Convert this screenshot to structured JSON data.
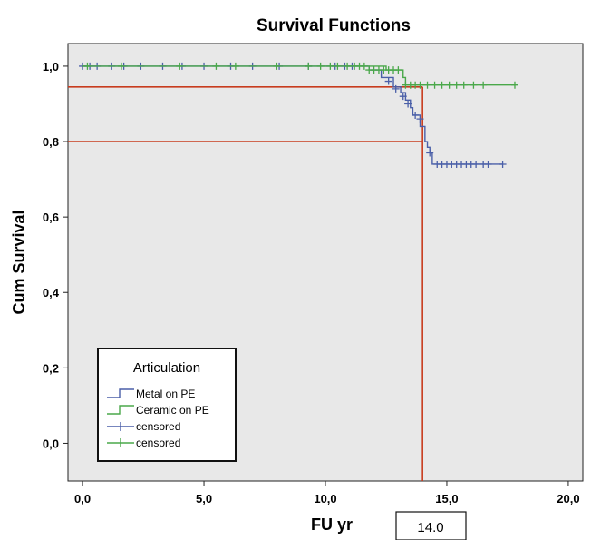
{
  "chart_data": {
    "type": "line",
    "title": "Survival Functions",
    "xlabel": "FU yr",
    "ylabel": "Cum Survival",
    "xlim": [
      -0.6,
      20.6
    ],
    "ylim": [
      -0.1,
      1.06
    ],
    "x_ticks": [
      0,
      5,
      10,
      15,
      20
    ],
    "x_tick_labels": [
      "0,0",
      "5,0",
      "10,0",
      "15,0",
      "20,0"
    ],
    "y_ticks": [
      0,
      0.2,
      0.4,
      0.6,
      0.8,
      1.0
    ],
    "y_tick_labels": [
      "0,0",
      "0,2",
      "0,4",
      "0,6",
      "0,8",
      "1,0"
    ],
    "grid": false,
    "background": "#e8e8e8",
    "legend": {
      "title": "Articulation",
      "position": "bottom-left",
      "entries": [
        {
          "label": "Metal on PE",
          "kind": "step"
        },
        {
          "label": "Ceramic on PE",
          "kind": "step"
        },
        {
          "label": "censored",
          "kind": "censor"
        },
        {
          "label": "censored",
          "kind": "censor"
        }
      ]
    },
    "series": [
      {
        "name": "Metal on PE",
        "color": "#4a5fa8",
        "steps": [
          [
            0,
            1.0
          ],
          [
            11.8,
            0.99
          ],
          [
            12.3,
            0.97
          ],
          [
            12.8,
            0.945
          ],
          [
            13.1,
            0.93
          ],
          [
            13.3,
            0.91
          ],
          [
            13.5,
            0.89
          ],
          [
            13.6,
            0.87
          ],
          [
            13.9,
            0.84
          ],
          [
            14.1,
            0.8
          ],
          [
            14.2,
            0.785
          ],
          [
            14.3,
            0.77
          ],
          [
            14.4,
            0.74
          ],
          [
            17.3,
            0.74
          ]
        ],
        "censored": [
          [
            0,
            1.0
          ],
          [
            0.3,
            1.0
          ],
          [
            0.6,
            1.0
          ],
          [
            1.2,
            1.0
          ],
          [
            1.7,
            1.0
          ],
          [
            2.4,
            1.0
          ],
          [
            3.3,
            1.0
          ],
          [
            4.1,
            1.0
          ],
          [
            5.0,
            1.0
          ],
          [
            6.1,
            1.0
          ],
          [
            7.0,
            1.0
          ],
          [
            8.1,
            1.0
          ],
          [
            9.3,
            1.0
          ],
          [
            10.4,
            1.0
          ],
          [
            10.8,
            1.0
          ],
          [
            11.1,
            1.0
          ],
          [
            12.6,
            0.96
          ],
          [
            12.9,
            0.94
          ],
          [
            13.2,
            0.92
          ],
          [
            13.4,
            0.9
          ],
          [
            13.7,
            0.87
          ],
          [
            13.9,
            0.86
          ],
          [
            14.3,
            0.77
          ],
          [
            14.6,
            0.74
          ],
          [
            14.8,
            0.74
          ],
          [
            15.0,
            0.74
          ],
          [
            15.2,
            0.74
          ],
          [
            15.4,
            0.74
          ],
          [
            15.6,
            0.74
          ],
          [
            15.8,
            0.74
          ],
          [
            16.0,
            0.74
          ],
          [
            16.2,
            0.74
          ],
          [
            16.5,
            0.74
          ],
          [
            16.7,
            0.74
          ],
          [
            17.3,
            0.74
          ]
        ]
      },
      {
        "name": "Ceramic on PE",
        "color": "#4aa84a",
        "steps": [
          [
            0,
            1.0
          ],
          [
            12.5,
            0.99
          ],
          [
            13.2,
            0.97
          ],
          [
            13.3,
            0.95
          ],
          [
            17.8,
            0.95
          ]
        ],
        "censored": [
          [
            0.2,
            1.0
          ],
          [
            1.6,
            1.0
          ],
          [
            4.0,
            1.0
          ],
          [
            5.5,
            1.0
          ],
          [
            6.3,
            1.0
          ],
          [
            8.0,
            1.0
          ],
          [
            9.3,
            1.0
          ],
          [
            9.8,
            1.0
          ],
          [
            10.2,
            1.0
          ],
          [
            10.5,
            1.0
          ],
          [
            10.9,
            1.0
          ],
          [
            11.2,
            1.0
          ],
          [
            11.4,
            1.0
          ],
          [
            11.6,
            1.0
          ],
          [
            11.8,
            0.99
          ],
          [
            12.0,
            0.99
          ],
          [
            12.2,
            0.99
          ],
          [
            12.4,
            0.99
          ],
          [
            12.6,
            0.99
          ],
          [
            12.8,
            0.99
          ],
          [
            13.0,
            0.99
          ],
          [
            13.3,
            0.95
          ],
          [
            13.5,
            0.95
          ],
          [
            13.7,
            0.95
          ],
          [
            13.9,
            0.95
          ],
          [
            14.2,
            0.95
          ],
          [
            14.5,
            0.95
          ],
          [
            14.8,
            0.95
          ],
          [
            15.1,
            0.95
          ],
          [
            15.4,
            0.95
          ],
          [
            15.7,
            0.95
          ],
          [
            16.1,
            0.95
          ],
          [
            16.5,
            0.95
          ],
          [
            17.8,
            0.95
          ]
        ]
      }
    ],
    "reference_lines": {
      "color": "#c83c1e",
      "horizontal": [
        0.945,
        0.8
      ],
      "vertical_x": 14.0
    },
    "annotation": {
      "text": "14.0"
    }
  }
}
